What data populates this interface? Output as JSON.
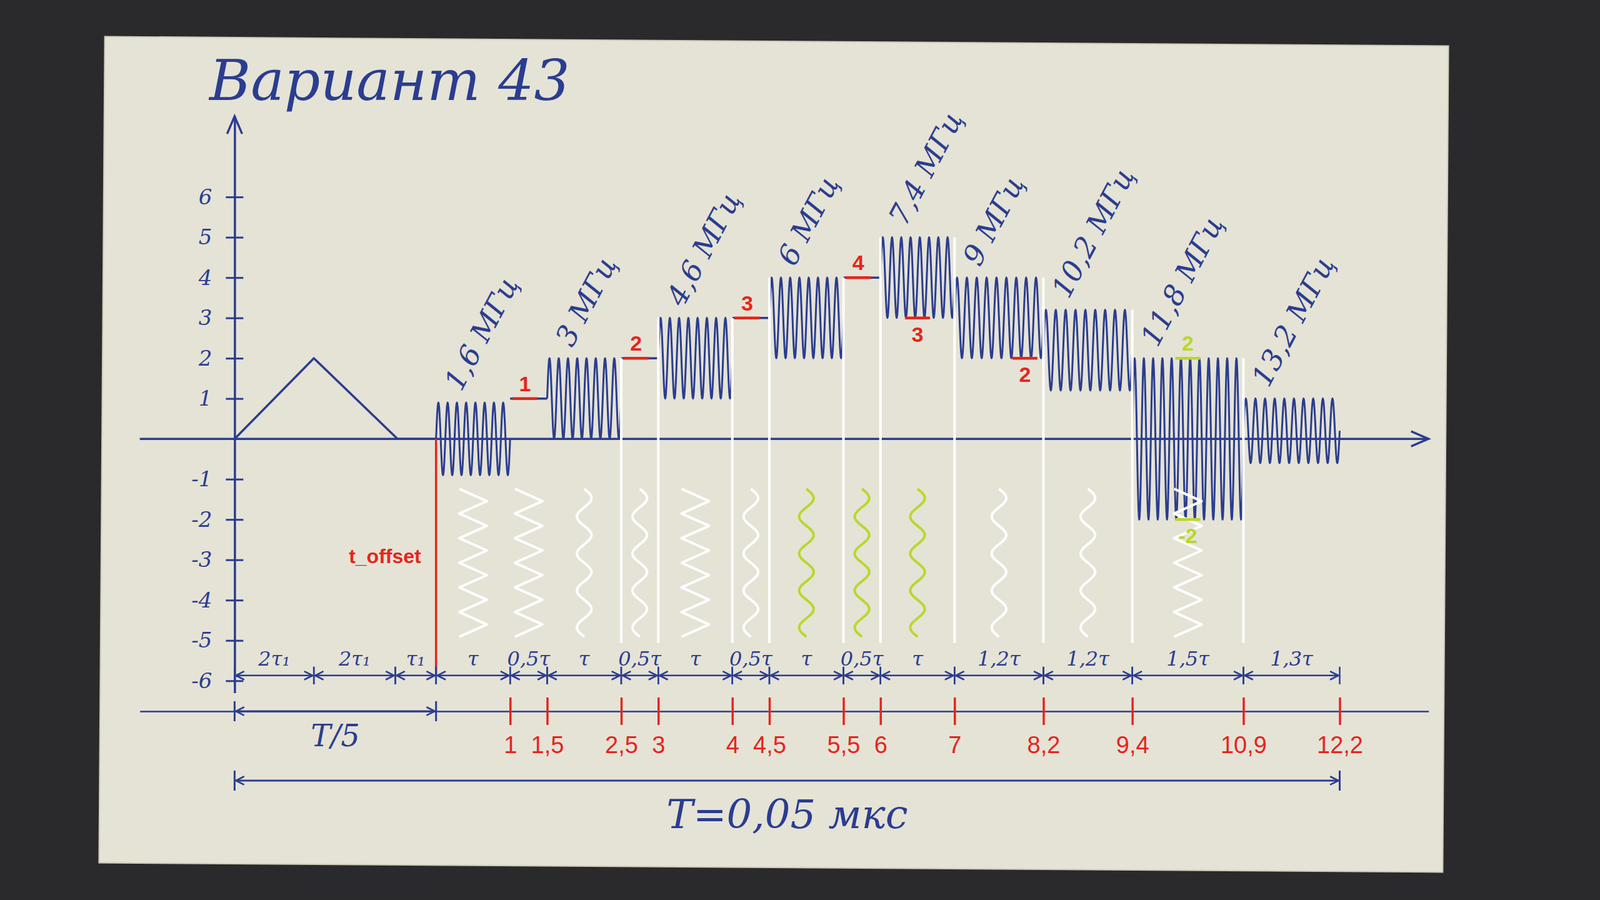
{
  "chart_data": {
    "type": "line",
    "title": "Вариант 43",
    "color": "#2b3d8f",
    "xlim": [
      -4,
      13.4
    ],
    "ylim": [
      -6.3,
      8
    ],
    "yticks": [
      -6,
      -5,
      -4,
      -3,
      -2,
      -1,
      1,
      2,
      3,
      4,
      5,
      6
    ],
    "xticks": [
      1,
      {
        "value": 1.5,
        "label": "1,5"
      },
      {
        "value": 2.5,
        "label": "2,5"
      },
      3,
      4,
      {
        "value": 4.5,
        "label": "4,5"
      },
      {
        "value": 5.5,
        "label": "5,5"
      },
      6,
      7,
      {
        "value": 8.2,
        "label": "8,2"
      },
      {
        "value": 9.4,
        "label": "9,4"
      },
      {
        "value": 10.9,
        "label": "10,9"
      },
      {
        "value": 12.2,
        "label": "12,2"
      }
    ],
    "pulse": {
      "x": [
        -2.72,
        -1.65,
        -0.52,
        0
      ],
      "values": [
        0,
        2,
        0,
        0
      ]
    },
    "bursts": [
      {
        "label": "1,6 МГц",
        "start": 0,
        "end": 1,
        "level": 0,
        "amplitude": 0.9
      },
      {
        "label": "3 МГц",
        "start": 1.5,
        "end": 2.5,
        "level": 1,
        "amplitude": 1
      },
      {
        "label": "4,6 МГц",
        "start": 3,
        "end": 4,
        "level": 2,
        "amplitude": 1
      },
      {
        "label": "6 МГц",
        "start": 4.5,
        "end": 5.5,
        "level": 3,
        "amplitude": 1
      },
      {
        "label": "7,4 МГц",
        "start": 6,
        "end": 7,
        "level": 4,
        "amplitude": 1
      },
      {
        "label": "9 МГц",
        "start": 7,
        "end": 8.2,
        "level": 3,
        "amplitude": 1
      },
      {
        "label": "10,2 МГц",
        "start": 8.2,
        "end": 9.4,
        "level": 2.2,
        "amplitude": 1
      },
      {
        "label": "11,8 МГц",
        "start": 9.4,
        "end": 10.9,
        "level": 0,
        "amplitude": 2
      },
      {
        "label": "13,2 МГц",
        "start": 10.9,
        "end": 12.2,
        "level": 0.2,
        "amplitude": 0.8
      }
    ],
    "levels": [
      {
        "start": 1,
        "end": 1.5,
        "value": 1
      },
      {
        "start": 2.5,
        "end": 3,
        "value": 2
      },
      {
        "start": 4,
        "end": 4.5,
        "value": 3
      },
      {
        "start": 5.5,
        "end": 6,
        "value": 4
      }
    ],
    "t_offset": {
      "label": "t_offset",
      "x": 0
    },
    "durations": [
      {
        "start": -2.72,
        "end": -1.65,
        "label": "2τ₁"
      },
      {
        "start": -1.65,
        "end": -0.55,
        "label": "2τ₁"
      },
      {
        "start": -0.55,
        "end": 0,
        "label": "τ₁"
      },
      {
        "start": 0,
        "end": 1,
        "label": "τ"
      },
      {
        "start": 1,
        "end": 1.5,
        "label": "0,5τ"
      },
      {
        "start": 1.5,
        "end": 2.5,
        "label": "τ"
      },
      {
        "start": 2.5,
        "end": 3,
        "label": "0,5τ"
      },
      {
        "start": 3,
        "end": 4,
        "label": "τ"
      },
      {
        "start": 4,
        "end": 4.5,
        "label": "0,5τ"
      },
      {
        "start": 4.5,
        "end": 5.5,
        "label": "τ"
      },
      {
        "start": 5.5,
        "end": 6,
        "label": "0,5τ"
      },
      {
        "start": 6,
        "end": 7,
        "label": "τ"
      },
      {
        "start": 7,
        "end": 8.2,
        "label": "1,2τ"
      },
      {
        "start": 8.2,
        "end": 9.4,
        "label": "1,2τ"
      },
      {
        "start": 9.4,
        "end": 10.9,
        "label": "1,5τ"
      },
      {
        "start": 10.9,
        "end": 12.2,
        "label": "1,3τ"
      }
    ],
    "spans": [
      {
        "start": -2.72,
        "end": 0,
        "label": "T/5"
      },
      {
        "start": -2.72,
        "end": 12.2,
        "label": "T=0,05 мкс"
      }
    ],
    "annotations": [
      {
        "text": "1",
        "x": 1.2,
        "y": 1,
        "color": "#e3261d"
      },
      {
        "text": "2",
        "x": 2.7,
        "y": 2,
        "color": "#e3261d"
      },
      {
        "text": "3",
        "x": 4.2,
        "y": 3,
        "color": "#e3261d"
      },
      {
        "text": "4",
        "x": 5.7,
        "y": 4,
        "color": "#e3261d"
      },
      {
        "text": "3",
        "x": 6.5,
        "y": 3,
        "color": "#e3261d"
      },
      {
        "text": "2",
        "x": 7.95,
        "y": 2,
        "color": "#e3261d"
      },
      {
        "text": "2",
        "x": 10.15,
        "y": 2,
        "color": "#b9d72c"
      },
      {
        "text": "-2",
        "x": 10.15,
        "y": -2,
        "color": "#b9d72c"
      }
    ]
  }
}
